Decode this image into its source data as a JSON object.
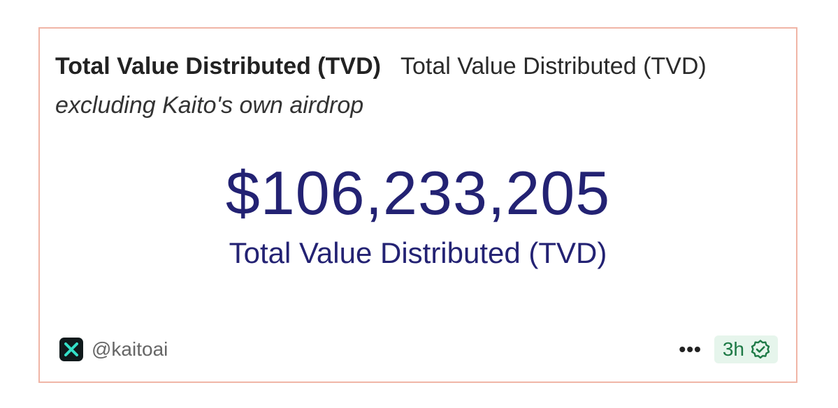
{
  "header": {
    "title_bold": "Total Value Distributed (TVD)",
    "title_regular": "Total Value Distributed (TVD)",
    "subtitle": "excluding Kaito's own airdrop"
  },
  "metric": {
    "value": "$106,233,205",
    "label": "Total Value Distributed (TVD)"
  },
  "footer": {
    "source_icon": "kaito-logo-icon",
    "handle": "@kaitoai",
    "more_label": "•••",
    "more_icon": "more-options-icon",
    "time": "3h",
    "time_icon": "verified-check-icon"
  },
  "colors": {
    "card_border": "#f0b5a6",
    "metric_text": "#232273",
    "badge_bg": "#e6f5ec",
    "badge_text": "#1e7a46",
    "logo_bg": "#101a1c",
    "logo_accent": "#34e0c8"
  }
}
